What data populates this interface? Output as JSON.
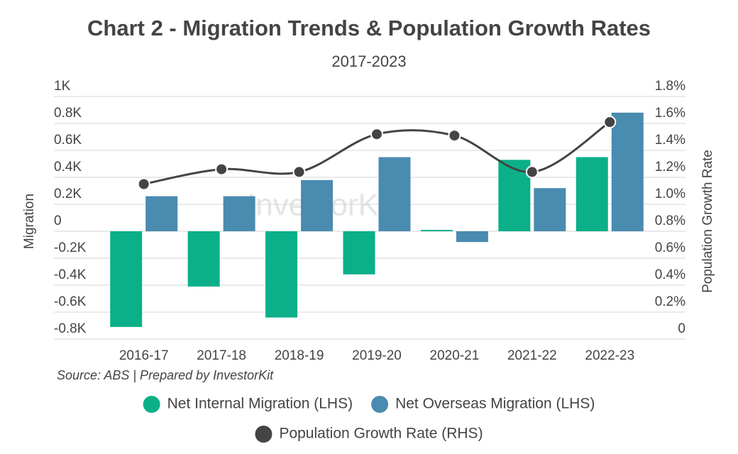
{
  "chart_data": {
    "type": "bar_line",
    "title": "Chart 2 - Migration Trends & Population Growth Rates",
    "subtitle": "2017-2023",
    "source": "Source: ABS | Prepared by InvestorKit",
    "watermark": "InvestorKit",
    "y_label": "Migration",
    "y2_label": "Population Growth Rate",
    "categories": [
      "2016-17",
      "2017-18",
      "2018-19",
      "2019-20",
      "2020-21",
      "2021-22",
      "2022-23"
    ],
    "series": [
      {
        "name": "Net Internal Migration (LHS)",
        "color": "#0bb088",
        "type": "bar",
        "values": [
          -710,
          -410,
          -640,
          -320,
          10,
          530,
          550
        ]
      },
      {
        "name": "Net Overseas Migration (LHS)",
        "color": "#4a8bb0",
        "type": "bar",
        "values": [
          260,
          260,
          380,
          550,
          -80,
          320,
          880
        ]
      },
      {
        "name": "Population Growth Rate (RHS)",
        "color": "#444444",
        "type": "line",
        "axis": "y2",
        "values": [
          1.15,
          1.26,
          1.24,
          1.52,
          1.51,
          1.24,
          1.61
        ]
      }
    ],
    "ylim": [
      -800,
      1000
    ],
    "yticks": [
      {
        "value": -800,
        "label": "-0.8K"
      },
      {
        "value": -600,
        "label": "-0.6K"
      },
      {
        "value": -400,
        "label": "-0.4K"
      },
      {
        "value": -200,
        "label": "-0.2K"
      },
      0,
      {
        "value": 200,
        "label": "0.2K"
      },
      {
        "value": 400,
        "label": "0.4K"
      },
      {
        "value": 600,
        "label": "0.6K"
      },
      {
        "value": 800,
        "label": "0.8K"
      },
      {
        "value": 1000,
        "label": "1K"
      }
    ],
    "y2lim": [
      0,
      1.8
    ],
    "y2ticks": [
      0,
      {
        "value": 0.2,
        "label": "0.2%"
      },
      {
        "value": 0.4,
        "label": "0.4%"
      },
      {
        "value": 0.6,
        "label": "0.6%"
      },
      {
        "value": 0.8,
        "label": "0.8%"
      },
      {
        "value": 1.0,
        "label": "1.0%"
      },
      {
        "value": 1.2,
        "label": "1.2%"
      },
      {
        "value": 1.4,
        "label": "1.4%"
      },
      {
        "value": 1.6,
        "label": "1.6%"
      },
      {
        "value": 1.8,
        "label": "1.8%"
      }
    ],
    "grid": true
  }
}
